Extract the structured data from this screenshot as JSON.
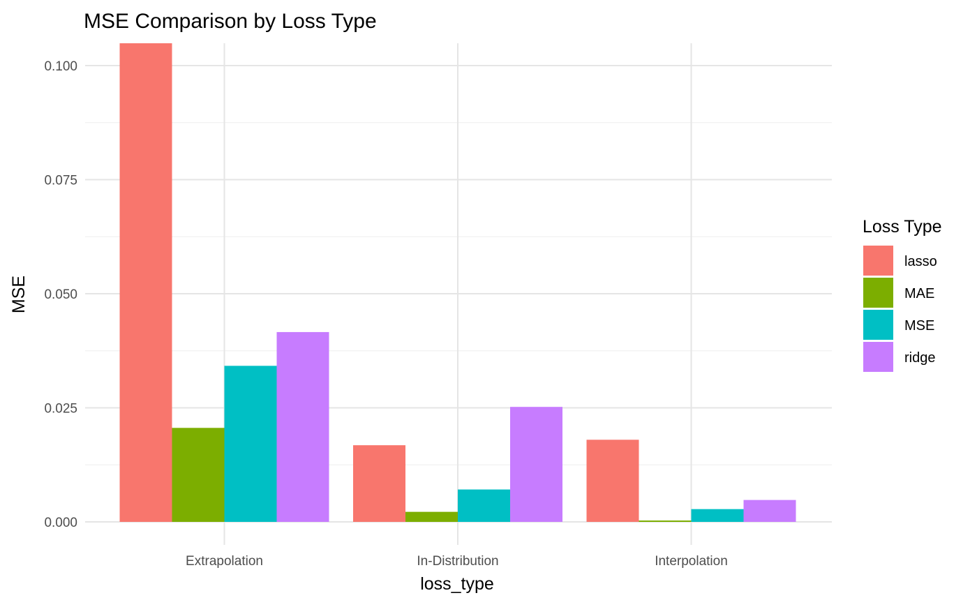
{
  "chart_data": {
    "type": "bar",
    "title": "MSE Comparison by Loss Type",
    "xlabel": "loss_type",
    "ylabel": "MSE",
    "categories": [
      "Extrapolation",
      "In-Distribution",
      "Interpolation"
    ],
    "ylim": [
      0,
      0.105
    ],
    "yticks": [
      0.0,
      0.025,
      0.05,
      0.075,
      0.1
    ],
    "ytick_labels": [
      "0.000",
      "0.025",
      "0.050",
      "0.075",
      "0.100"
    ],
    "grid": true,
    "legend": {
      "title": "Loss Type",
      "position": "right"
    },
    "series": [
      {
        "name": "lasso",
        "color": "#F8766D",
        "values": [
          0.1052,
          0.0168,
          0.018
        ]
      },
      {
        "name": "MAE",
        "color": "#7CAE00",
        "values": [
          0.0206,
          0.0022,
          0.0003
        ]
      },
      {
        "name": "MSE",
        "color": "#00BFC4",
        "values": [
          0.0342,
          0.0071,
          0.0028
        ]
      },
      {
        "name": "ridge",
        "color": "#C77CFF",
        "values": [
          0.0416,
          0.0252,
          0.0048
        ]
      }
    ]
  }
}
